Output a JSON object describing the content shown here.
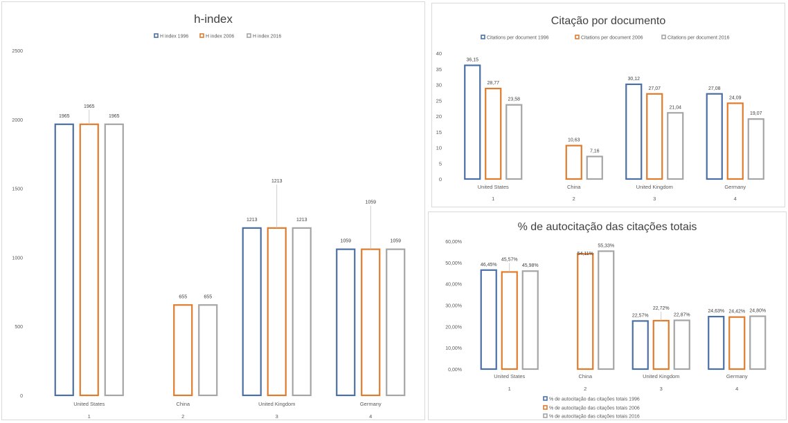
{
  "chart_data": [
    {
      "id": "h",
      "type": "bar",
      "title": "h-index",
      "categories": [
        "United States",
        "China",
        "United Kingdom",
        "Germany"
      ],
      "category_numbers": [
        "1",
        "2",
        "3",
        "4"
      ],
      "series": [
        {
          "name": "H index 1996",
          "color": "#4a6fa5",
          "values": [
            1965,
            null,
            1213,
            1059
          ]
        },
        {
          "name": "H index 2006",
          "color": "#e07b2c",
          "values": [
            1965,
            655,
            1213,
            1059
          ]
        },
        {
          "name": "H index 2016",
          "color": "#a5a5a5",
          "values": [
            1965,
            655,
            1213,
            1059
          ]
        }
      ],
      "data_labels": [
        [
          "1965",
          "",
          "1213",
          "1059"
        ],
        [
          "1965",
          "655",
          "1213",
          "1059"
        ],
        [
          "1965",
          "655",
          "1213",
          "1059"
        ]
      ],
      "y_ticks": [
        "0",
        "500",
        "1000",
        "1500",
        "2000",
        "2500"
      ],
      "ylim": [
        0,
        2500
      ],
      "legend_position": "top",
      "grid": false
    },
    {
      "id": "cpd",
      "type": "bar",
      "title": "Citação por documento",
      "categories": [
        "United States",
        "China",
        "United Kingdom",
        "Germany"
      ],
      "category_numbers": [
        "1",
        "2",
        "3",
        "4"
      ],
      "series": [
        {
          "name": "Citations per document 1996",
          "color": "#4a6fa5",
          "values": [
            36.15,
            null,
            30.12,
            27.08
          ]
        },
        {
          "name": "Citations per document 2006",
          "color": "#e07b2c",
          "values": [
            28.77,
            10.63,
            27.07,
            24.09
          ]
        },
        {
          "name": "Citations per document 2016",
          "color": "#a5a5a5",
          "values": [
            23.58,
            7.16,
            21.04,
            19.07
          ]
        }
      ],
      "data_labels": [
        [
          "36,15",
          "",
          "30,12",
          "27,08"
        ],
        [
          "28,77",
          "10,63",
          "27,07",
          "24,09"
        ],
        [
          "23,58",
          "7,16",
          "21,04",
          "19,07"
        ]
      ],
      "y_ticks": [
        "0",
        "5",
        "10",
        "15",
        "20",
        "25",
        "30",
        "35",
        "40"
      ],
      "ylim": [
        0,
        40
      ],
      "legend_position": "top",
      "grid": false
    },
    {
      "id": "sc",
      "type": "bar",
      "title": "% de autocitação das citações totais",
      "categories": [
        "United States",
        "China",
        "United Kingdom",
        "Germany"
      ],
      "category_numbers": [
        "1",
        "2",
        "3",
        "4"
      ],
      "series": [
        {
          "name": "% de autocitação das citações totais 1996",
          "color": "#4a6fa5",
          "values": [
            46.45,
            null,
            22.57,
            24.63
          ]
        },
        {
          "name": "% de autocitação das citações totais 2006",
          "color": "#e07b2c",
          "values": [
            45.57,
            54.11,
            22.72,
            24.42
          ]
        },
        {
          "name": "% de autocitação das citações totais 2016",
          "color": "#a5a5a5",
          "values": [
            45.98,
            55.33,
            22.87,
            24.8
          ]
        }
      ],
      "data_labels": [
        [
          "46,45%",
          "",
          "22,57%",
          "24,63%"
        ],
        [
          "45,57%",
          "54,11%",
          "22,72%",
          "24,42%"
        ],
        [
          "45,98%",
          "55,33%",
          "22,87%",
          "24,80%"
        ]
      ],
      "y_ticks": [
        "0,00%",
        "10,00%",
        "20,00%",
        "30,00%",
        "40,00%",
        "50,00%",
        "60,00%"
      ],
      "ylim": [
        0,
        60
      ],
      "legend_position": "bottom",
      "grid": false
    }
  ]
}
